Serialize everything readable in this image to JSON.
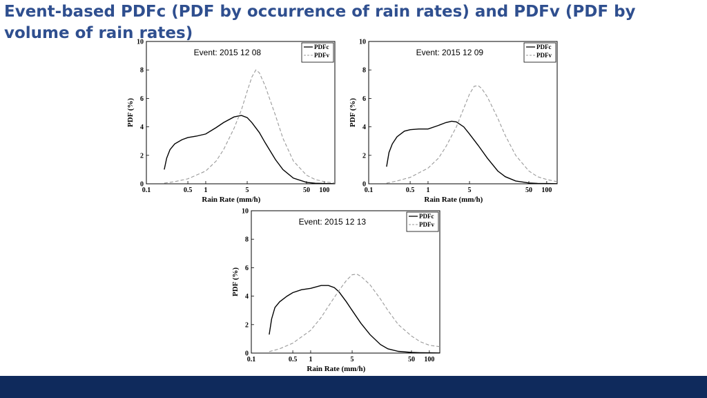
{
  "slide": {
    "title": "Event-based PDFc (PDF by occurrence of rain rates) and PDFv (PDF by volume of rain rates)"
  },
  "colors": {
    "title": "#2f4f8f",
    "footer": "#0f2a5c",
    "pdfc": "#000000",
    "pdfv": "#999999"
  },
  "chart_data": [
    {
      "type": "line",
      "annotation": "Event: 2015 12 08",
      "xlabel": "Rain Rate (mm/h)",
      "ylabel": "PDF (%)",
      "xscale": "log",
      "xlim": [
        0.1,
        150
      ],
      "ylim": [
        0,
        10
      ],
      "xticks": [
        0.1,
        0.5,
        1,
        5,
        50,
        100
      ],
      "xtick_labels": [
        "0.1",
        "0.5",
        "1",
        "5",
        "50",
        "100"
      ],
      "yticks": [
        0,
        2,
        4,
        6,
        8,
        10
      ],
      "ytick_labels": [
        "0",
        "2",
        "4",
        "6",
        "8",
        "10"
      ],
      "legend": "top-right",
      "series": [
        {
          "name": "PDFc",
          "style": "solid",
          "x": [
            0.2,
            0.22,
            0.25,
            0.3,
            0.4,
            0.5,
            0.7,
            1,
            1.5,
            2,
            3,
            4,
            5,
            6,
            8,
            10,
            15,
            20,
            30,
            50,
            70,
            100,
            150
          ],
          "y": [
            1.0,
            1.8,
            2.4,
            2.8,
            3.1,
            3.25,
            3.35,
            3.5,
            3.95,
            4.3,
            4.7,
            4.8,
            4.65,
            4.3,
            3.6,
            2.9,
            1.7,
            1.0,
            0.4,
            0.1,
            0.04,
            0.02,
            0.01
          ]
        },
        {
          "name": "PDFv",
          "style": "dashed",
          "x": [
            0.2,
            0.3,
            0.5,
            1,
            1.5,
            2,
            3,
            4,
            5,
            6,
            7,
            8,
            10,
            15,
            20,
            30,
            50,
            70,
            100,
            150
          ],
          "y": [
            0.05,
            0.15,
            0.35,
            0.9,
            1.6,
            2.4,
            3.9,
            5.2,
            6.5,
            7.5,
            8.0,
            7.8,
            6.9,
            4.8,
            3.2,
            1.6,
            0.6,
            0.3,
            0.15,
            0.05
          ]
        }
      ]
    },
    {
      "type": "line",
      "annotation": "Event: 2015 12 09",
      "xlabel": "Rain Rate (mm/h)",
      "ylabel": "PDF (%)",
      "xscale": "log",
      "xlim": [
        0.1,
        150
      ],
      "ylim": [
        0,
        10
      ],
      "xticks": [
        0.1,
        0.5,
        1,
        5,
        50,
        100
      ],
      "xtick_labels": [
        "0.1",
        "0.5",
        "1",
        "5",
        "50",
        "100"
      ],
      "yticks": [
        0,
        2,
        4,
        6,
        8,
        10
      ],
      "ytick_labels": [
        "0",
        "2",
        "4",
        "6",
        "8",
        "10"
      ],
      "legend": "top-right",
      "series": [
        {
          "name": "PDFc",
          "style": "solid",
          "x": [
            0.2,
            0.22,
            0.25,
            0.3,
            0.4,
            0.5,
            0.7,
            1,
            1.5,
            2,
            2.5,
            3,
            4,
            5,
            7,
            10,
            15,
            20,
            30,
            50,
            70,
            100,
            150
          ],
          "y": [
            1.2,
            2.2,
            2.8,
            3.3,
            3.7,
            3.8,
            3.85,
            3.85,
            4.1,
            4.3,
            4.4,
            4.35,
            4.0,
            3.5,
            2.7,
            1.8,
            0.9,
            0.5,
            0.2,
            0.06,
            0.03,
            0.02,
            0.01
          ]
        },
        {
          "name": "PDFv",
          "style": "dashed",
          "x": [
            0.2,
            0.3,
            0.5,
            1,
            1.5,
            2,
            3,
            4,
            5,
            6,
            7,
            8,
            10,
            15,
            20,
            30,
            50,
            70,
            100,
            150
          ],
          "y": [
            0.05,
            0.2,
            0.45,
            1.1,
            1.8,
            2.6,
            4.0,
            5.3,
            6.3,
            6.85,
            6.9,
            6.7,
            6.1,
            4.6,
            3.4,
            2.0,
            0.9,
            0.5,
            0.3,
            0.15
          ]
        }
      ]
    },
    {
      "type": "line",
      "annotation": "Event: 2015 12 13",
      "xlabel": "Rain Rate (mm/h)",
      "ylabel": "PDF (%)",
      "xscale": "log",
      "xlim": [
        0.1,
        150
      ],
      "ylim": [
        0,
        10
      ],
      "xticks": [
        0.1,
        0.5,
        1,
        5,
        50,
        100
      ],
      "xtick_labels": [
        "0.1",
        "0.5",
        "1",
        "5",
        "50",
        "100"
      ],
      "yticks": [
        0,
        2,
        4,
        6,
        8,
        10
      ],
      "ytick_labels": [
        "0",
        "2",
        "4",
        "6",
        "8",
        "10"
      ],
      "legend": "top-right",
      "series": [
        {
          "name": "PDFc",
          "style": "solid",
          "x": [
            0.2,
            0.22,
            0.25,
            0.3,
            0.4,
            0.5,
            0.7,
            1,
            1.5,
            2,
            2.5,
            3,
            4,
            5,
            7,
            10,
            15,
            20,
            30,
            50,
            70,
            100,
            150
          ],
          "y": [
            1.3,
            2.4,
            3.2,
            3.6,
            4.0,
            4.25,
            4.45,
            4.55,
            4.75,
            4.75,
            4.6,
            4.3,
            3.6,
            3.0,
            2.1,
            1.3,
            0.6,
            0.3,
            0.12,
            0.05,
            0.03,
            0.02,
            0.01
          ]
        },
        {
          "name": "PDFv",
          "style": "dashed",
          "x": [
            0.2,
            0.3,
            0.5,
            1,
            1.5,
            2,
            3,
            4,
            5,
            6,
            7,
            10,
            15,
            20,
            30,
            50,
            70,
            100,
            150
          ],
          "y": [
            0.1,
            0.3,
            0.7,
            1.6,
            2.5,
            3.3,
            4.4,
            5.1,
            5.5,
            5.55,
            5.4,
            4.8,
            3.8,
            3.0,
            2.0,
            1.2,
            0.8,
            0.55,
            0.45
          ]
        }
      ]
    }
  ]
}
